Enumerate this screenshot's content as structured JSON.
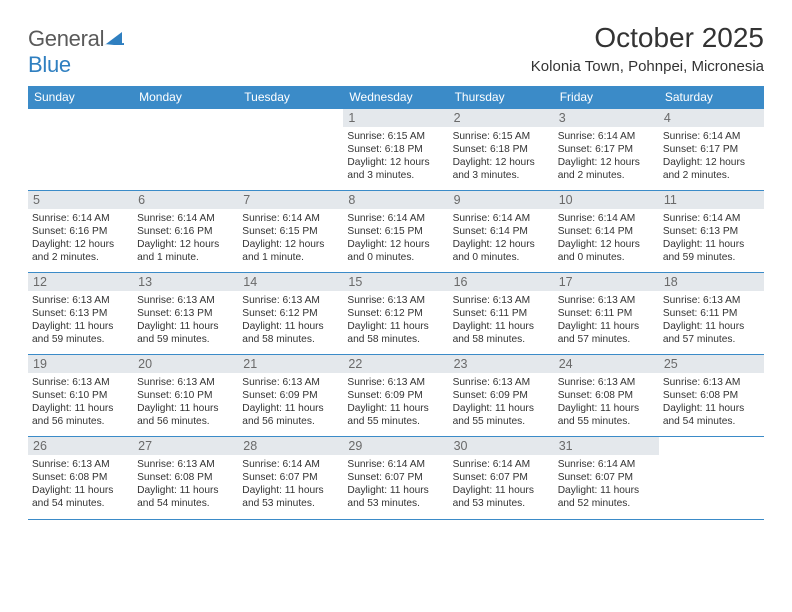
{
  "logo": {
    "text_general": "General",
    "text_blue": "Blue",
    "shape_color": "#2f7fc0"
  },
  "header": {
    "title": "October 2025",
    "location": "Kolonia Town, Pohnpei, Micronesia"
  },
  "colors": {
    "header_bg": "#3b8bc8",
    "header_fg": "#ffffff",
    "daynum_bg": "#e4e8ec",
    "daynum_fg": "#6a6a6a",
    "text": "#333333",
    "border": "#c8c8c8",
    "week_border": "#3b8bc8",
    "page_bg": "#ffffff"
  },
  "typography": {
    "title_fontsize": 28,
    "location_fontsize": 15,
    "dayhead_fontsize": 12,
    "daynum_fontsize": 12.5,
    "body_fontsize": 10.2,
    "font_family": "Arial"
  },
  "day_names": [
    "Sunday",
    "Monday",
    "Tuesday",
    "Wednesday",
    "Thursday",
    "Friday",
    "Saturday"
  ],
  "weeks": [
    [
      {
        "n": "",
        "sunrise": "",
        "sunset": "",
        "daylight": ""
      },
      {
        "n": "",
        "sunrise": "",
        "sunset": "",
        "daylight": ""
      },
      {
        "n": "",
        "sunrise": "",
        "sunset": "",
        "daylight": ""
      },
      {
        "n": "1",
        "sunrise": "Sunrise: 6:15 AM",
        "sunset": "Sunset: 6:18 PM",
        "daylight": "Daylight: 12 hours and 3 minutes."
      },
      {
        "n": "2",
        "sunrise": "Sunrise: 6:15 AM",
        "sunset": "Sunset: 6:18 PM",
        "daylight": "Daylight: 12 hours and 3 minutes."
      },
      {
        "n": "3",
        "sunrise": "Sunrise: 6:14 AM",
        "sunset": "Sunset: 6:17 PM",
        "daylight": "Daylight: 12 hours and 2 minutes."
      },
      {
        "n": "4",
        "sunrise": "Sunrise: 6:14 AM",
        "sunset": "Sunset: 6:17 PM",
        "daylight": "Daylight: 12 hours and 2 minutes."
      }
    ],
    [
      {
        "n": "5",
        "sunrise": "Sunrise: 6:14 AM",
        "sunset": "Sunset: 6:16 PM",
        "daylight": "Daylight: 12 hours and 2 minutes."
      },
      {
        "n": "6",
        "sunrise": "Sunrise: 6:14 AM",
        "sunset": "Sunset: 6:16 PM",
        "daylight": "Daylight: 12 hours and 1 minute."
      },
      {
        "n": "7",
        "sunrise": "Sunrise: 6:14 AM",
        "sunset": "Sunset: 6:15 PM",
        "daylight": "Daylight: 12 hours and 1 minute."
      },
      {
        "n": "8",
        "sunrise": "Sunrise: 6:14 AM",
        "sunset": "Sunset: 6:15 PM",
        "daylight": "Daylight: 12 hours and 0 minutes."
      },
      {
        "n": "9",
        "sunrise": "Sunrise: 6:14 AM",
        "sunset": "Sunset: 6:14 PM",
        "daylight": "Daylight: 12 hours and 0 minutes."
      },
      {
        "n": "10",
        "sunrise": "Sunrise: 6:14 AM",
        "sunset": "Sunset: 6:14 PM",
        "daylight": "Daylight: 12 hours and 0 minutes."
      },
      {
        "n": "11",
        "sunrise": "Sunrise: 6:14 AM",
        "sunset": "Sunset: 6:13 PM",
        "daylight": "Daylight: 11 hours and 59 minutes."
      }
    ],
    [
      {
        "n": "12",
        "sunrise": "Sunrise: 6:13 AM",
        "sunset": "Sunset: 6:13 PM",
        "daylight": "Daylight: 11 hours and 59 minutes."
      },
      {
        "n": "13",
        "sunrise": "Sunrise: 6:13 AM",
        "sunset": "Sunset: 6:13 PM",
        "daylight": "Daylight: 11 hours and 59 minutes."
      },
      {
        "n": "14",
        "sunrise": "Sunrise: 6:13 AM",
        "sunset": "Sunset: 6:12 PM",
        "daylight": "Daylight: 11 hours and 58 minutes."
      },
      {
        "n": "15",
        "sunrise": "Sunrise: 6:13 AM",
        "sunset": "Sunset: 6:12 PM",
        "daylight": "Daylight: 11 hours and 58 minutes."
      },
      {
        "n": "16",
        "sunrise": "Sunrise: 6:13 AM",
        "sunset": "Sunset: 6:11 PM",
        "daylight": "Daylight: 11 hours and 58 minutes."
      },
      {
        "n": "17",
        "sunrise": "Sunrise: 6:13 AM",
        "sunset": "Sunset: 6:11 PM",
        "daylight": "Daylight: 11 hours and 57 minutes."
      },
      {
        "n": "18",
        "sunrise": "Sunrise: 6:13 AM",
        "sunset": "Sunset: 6:11 PM",
        "daylight": "Daylight: 11 hours and 57 minutes."
      }
    ],
    [
      {
        "n": "19",
        "sunrise": "Sunrise: 6:13 AM",
        "sunset": "Sunset: 6:10 PM",
        "daylight": "Daylight: 11 hours and 56 minutes."
      },
      {
        "n": "20",
        "sunrise": "Sunrise: 6:13 AM",
        "sunset": "Sunset: 6:10 PM",
        "daylight": "Daylight: 11 hours and 56 minutes."
      },
      {
        "n": "21",
        "sunrise": "Sunrise: 6:13 AM",
        "sunset": "Sunset: 6:09 PM",
        "daylight": "Daylight: 11 hours and 56 minutes."
      },
      {
        "n": "22",
        "sunrise": "Sunrise: 6:13 AM",
        "sunset": "Sunset: 6:09 PM",
        "daylight": "Daylight: 11 hours and 55 minutes."
      },
      {
        "n": "23",
        "sunrise": "Sunrise: 6:13 AM",
        "sunset": "Sunset: 6:09 PM",
        "daylight": "Daylight: 11 hours and 55 minutes."
      },
      {
        "n": "24",
        "sunrise": "Sunrise: 6:13 AM",
        "sunset": "Sunset: 6:08 PM",
        "daylight": "Daylight: 11 hours and 55 minutes."
      },
      {
        "n": "25",
        "sunrise": "Sunrise: 6:13 AM",
        "sunset": "Sunset: 6:08 PM",
        "daylight": "Daylight: 11 hours and 54 minutes."
      }
    ],
    [
      {
        "n": "26",
        "sunrise": "Sunrise: 6:13 AM",
        "sunset": "Sunset: 6:08 PM",
        "daylight": "Daylight: 11 hours and 54 minutes."
      },
      {
        "n": "27",
        "sunrise": "Sunrise: 6:13 AM",
        "sunset": "Sunset: 6:08 PM",
        "daylight": "Daylight: 11 hours and 54 minutes."
      },
      {
        "n": "28",
        "sunrise": "Sunrise: 6:14 AM",
        "sunset": "Sunset: 6:07 PM",
        "daylight": "Daylight: 11 hours and 53 minutes."
      },
      {
        "n": "29",
        "sunrise": "Sunrise: 6:14 AM",
        "sunset": "Sunset: 6:07 PM",
        "daylight": "Daylight: 11 hours and 53 minutes."
      },
      {
        "n": "30",
        "sunrise": "Sunrise: 6:14 AM",
        "sunset": "Sunset: 6:07 PM",
        "daylight": "Daylight: 11 hours and 53 minutes."
      },
      {
        "n": "31",
        "sunrise": "Sunrise: 6:14 AM",
        "sunset": "Sunset: 6:07 PM",
        "daylight": "Daylight: 11 hours and 52 minutes."
      },
      {
        "n": "",
        "sunrise": "",
        "sunset": "",
        "daylight": ""
      }
    ]
  ]
}
